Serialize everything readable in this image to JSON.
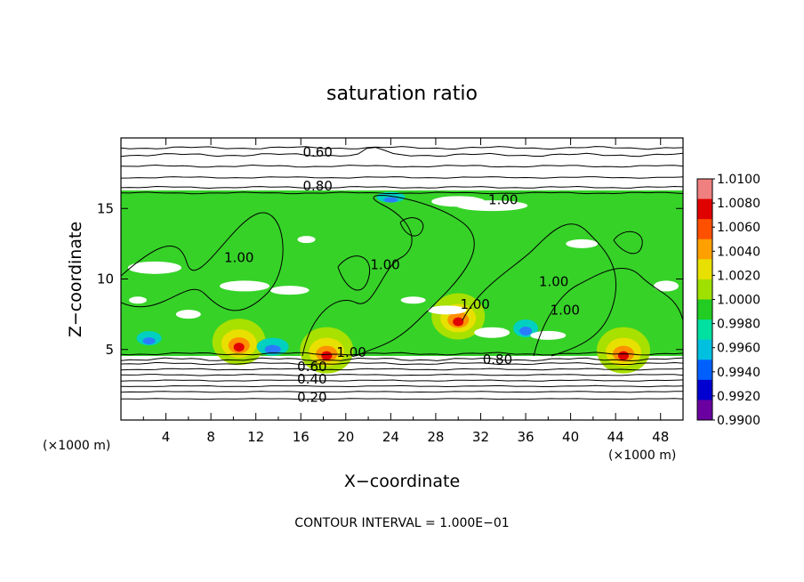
{
  "chart_data": {
    "type": "heatmap",
    "title": "saturation ratio",
    "xlabel": "X−coordinate",
    "ylabel": "Z−coordinate",
    "x_unit": "(×1000 m)",
    "z_unit": "(×1000 m)",
    "footer": "CONTOUR INTERVAL = 1.000E−01",
    "xlim": [
      0,
      50
    ],
    "ylim": [
      0,
      20
    ],
    "x_ticks": [
      "4",
      "8",
      "12",
      "16",
      "20",
      "24",
      "28",
      "32",
      "36",
      "40",
      "44",
      "48"
    ],
    "y_ticks": [
      "5",
      "10",
      "15"
    ],
    "colorbar": {
      "labels": [
        "1.0100",
        "1.0080",
        "1.0060",
        "1.0040",
        "1.0020",
        "1.0000",
        "0.9980",
        "0.9960",
        "0.9940",
        "0.9920",
        "0.9900"
      ],
      "colors": [
        "#f08080",
        "#e00000",
        "#ff5000",
        "#ffa000",
        "#e8e000",
        "#a0e000",
        "#22cc22",
        "#00e0a0",
        "#00c0e0",
        "#0060ff",
        "#0000d0",
        "#6a00a0"
      ]
    },
    "contour_labels": [
      {
        "text": "0.60",
        "x": 17.5,
        "z": 19.0
      },
      {
        "text": "0.80",
        "x": 17.5,
        "z": 16.6
      },
      {
        "text": "1.00",
        "x": 34.0,
        "z": 15.6
      },
      {
        "text": "1.00",
        "x": 10.5,
        "z": 11.5
      },
      {
        "text": "1.00",
        "x": 23.5,
        "z": 11.0
      },
      {
        "text": "1.00",
        "x": 31.5,
        "z": 8.2
      },
      {
        "text": "1.00",
        "x": 38.5,
        "z": 9.8
      },
      {
        "text": "1.00",
        "x": 39.5,
        "z": 7.8
      },
      {
        "text": "1.00",
        "x": 20.5,
        "z": 4.8
      },
      {
        "text": "0.80",
        "x": 33.5,
        "z": 4.3
      },
      {
        "text": "0.60",
        "x": 17.0,
        "z": 3.8
      },
      {
        "text": "0.40",
        "x": 17.0,
        "z": 2.9
      },
      {
        "text": "0.20",
        "x": 17.0,
        "z": 1.6
      }
    ]
  }
}
